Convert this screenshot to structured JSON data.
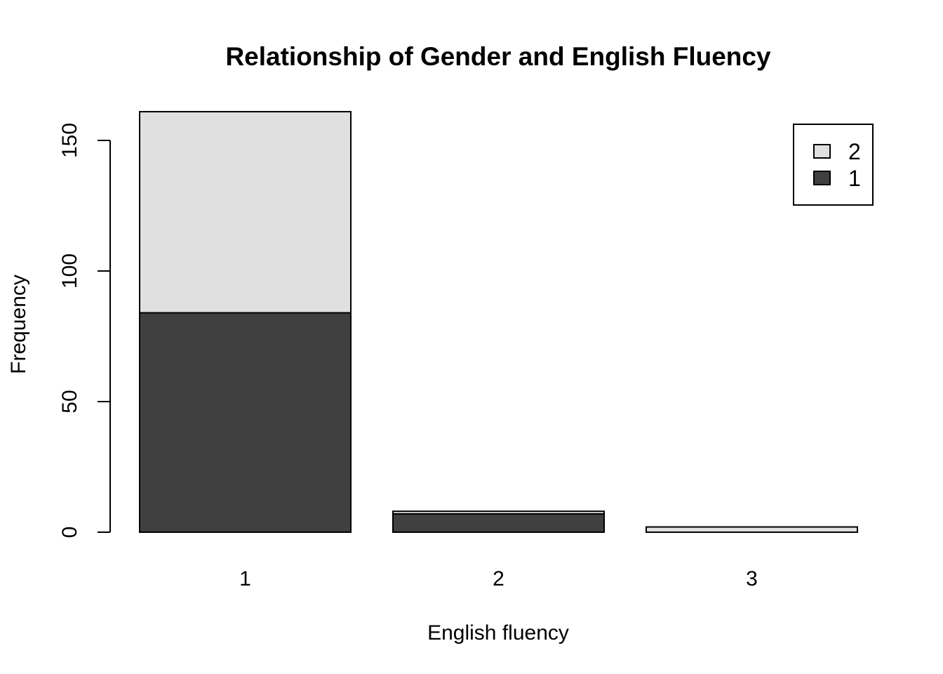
{
  "chart_data": {
    "type": "bar",
    "stacked": true,
    "title": "Relationship of Gender and English Fluency",
    "xlabel": "English fluency",
    "ylabel": "Frequency",
    "categories": [
      "1",
      "2",
      "3"
    ],
    "series": [
      {
        "name": "1",
        "color": "#404040",
        "values": [
          84,
          7,
          0
        ]
      },
      {
        "name": "2",
        "color": "#e0e0e0",
        "values": [
          77,
          1,
          2
        ]
      }
    ],
    "yticks": [
      0,
      50,
      100,
      150
    ],
    "ylim": [
      0,
      161
    ],
    "legend": {
      "position": "top-right",
      "order": [
        "2",
        "1"
      ]
    },
    "grid": false
  }
}
